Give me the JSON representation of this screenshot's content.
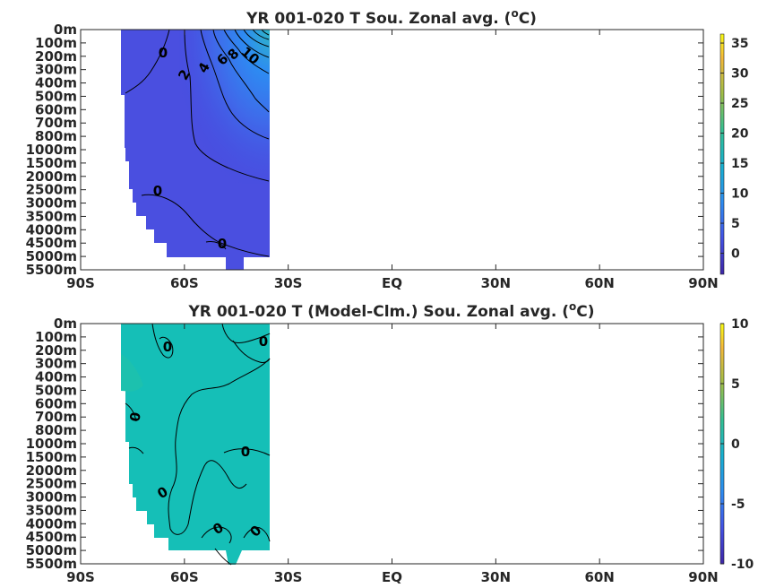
{
  "chart_data": [
    {
      "type": "heatmap",
      "title": "YR 001-020 T Sou. Zonal avg. (",
      "title_sup": "o",
      "title_end": "C)",
      "x_ticks": [
        "90S",
        "60S",
        "30S",
        "EQ",
        "30N",
        "60N",
        "90N"
      ],
      "x_values": [
        -90,
        -60,
        -30,
        0,
        30,
        60,
        90
      ],
      "y_ticks": [
        "0m",
        "100m",
        "200m",
        "300m",
        "400m",
        "500m",
        "600m",
        "700m",
        "800m",
        "1000m",
        "1500m",
        "2000m",
        "2500m",
        "3000m",
        "3500m",
        "4000m",
        "4500m",
        "5000m",
        "5500m"
      ],
      "colorbar": {
        "min": -3.5,
        "max": 36.5,
        "ticks": [
          "0",
          "5",
          "10",
          "15",
          "20",
          "25",
          "30",
          "35"
        ],
        "tick_values": [
          0,
          5,
          10,
          15,
          20,
          25,
          30,
          35
        ]
      },
      "contour_labels": [
        "0",
        "2",
        "4",
        "6",
        "8",
        "10",
        "0",
        "0"
      ],
      "data_extent": {
        "lat_min": -78,
        "lat_max": -34
      }
    },
    {
      "type": "heatmap",
      "title": "YR 001-020 T (Model-Clm.) Sou. Zonal avg. (",
      "title_sup": "o",
      "title_end": "C)",
      "x_ticks": [
        "90S",
        "60S",
        "30S",
        "EQ",
        "30N",
        "60N",
        "90N"
      ],
      "x_values": [
        -90,
        -60,
        -30,
        0,
        30,
        60,
        90
      ],
      "y_ticks": [
        "0m",
        "100m",
        "200m",
        "300m",
        "400m",
        "500m",
        "600m",
        "700m",
        "800m",
        "1000m",
        "1500m",
        "2000m",
        "2500m",
        "3000m",
        "3500m",
        "4000m",
        "4500m",
        "5000m",
        "5500m"
      ],
      "colorbar": {
        "min": -10,
        "max": 10,
        "ticks": [
          "10",
          "5",
          "0",
          "-5",
          "-10"
        ],
        "tick_values": [
          10,
          5,
          0,
          -5,
          -10
        ]
      },
      "contour_labels": [
        "0",
        "0",
        "0",
        "0",
        "0",
        "0"
      ],
      "data_extent": {
        "lat_min": -78,
        "lat_max": -34
      }
    }
  ]
}
